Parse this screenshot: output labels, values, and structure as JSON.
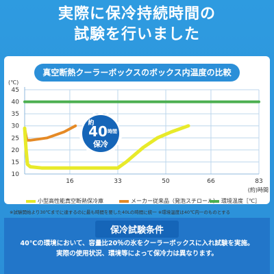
{
  "headline": {
    "line1": "実際に保冷持続時間の",
    "line2": "試験を行いました"
  },
  "colors": {
    "background": "#2b8fd8",
    "product": "#e8ea2a",
    "competitor": "#e58a26",
    "ambient": "#4caf50",
    "badge": "#1565b8"
  },
  "badge": {
    "prefix": "約",
    "number": "40",
    "unit": "時間",
    "word": "保冷"
  },
  "chart_data": {
    "type": "line",
    "title": "真空断熱クーラーボックスのボックス内温度の比較",
    "ylabel": "(℃)",
    "xlabel": "(約)時間",
    "x_ticks": [
      16,
      33,
      50,
      66,
      83
    ],
    "y_ticks": [
      10,
      15,
      20,
      25,
      30,
      35,
      40,
      45
    ],
    "xlim": [
      0,
      83
    ],
    "ylim": [
      10,
      45
    ],
    "grid": true,
    "legend_position": "bottom",
    "series": [
      {
        "name": "小型高性能真空断熱保冷庫",
        "color": "#e8ea2a",
        "points": [
          [
            0,
            29
          ],
          [
            0.5,
            20
          ],
          [
            1,
            14
          ],
          [
            2,
            13
          ],
          [
            6,
            12.5
          ],
          [
            33,
            12.5
          ],
          [
            36,
            15
          ],
          [
            42,
            21
          ],
          [
            47,
            25
          ],
          [
            52,
            27.5
          ],
          [
            58,
            30
          ]
        ]
      },
      {
        "name": "メーカー従来品（発泡スチロール）",
        "color": "#e58a26",
        "points": [
          [
            0,
            29
          ],
          [
            0.8,
            24
          ],
          [
            2,
            24
          ],
          [
            8,
            25
          ],
          [
            14,
            27.5
          ],
          [
            18,
            30
          ]
        ]
      },
      {
        "name": "環境温度［℃］",
        "color": "#4caf50",
        "points": [
          [
            0,
            40
          ],
          [
            83,
            40
          ]
        ]
      }
    ]
  },
  "footnote": "※試験開始より30℃までに達するのに最も時間を要した40Lの時間に統一 ※環境温度は40℃内一のものとする",
  "conditions": {
    "title": "保冷試験条件",
    "line1": "40℃の環境において、容量比20％の氷をクーラーボックスに入れ試験を実施。",
    "line2": "実際の使用状況、環境等によって保冷力は異なります。"
  }
}
